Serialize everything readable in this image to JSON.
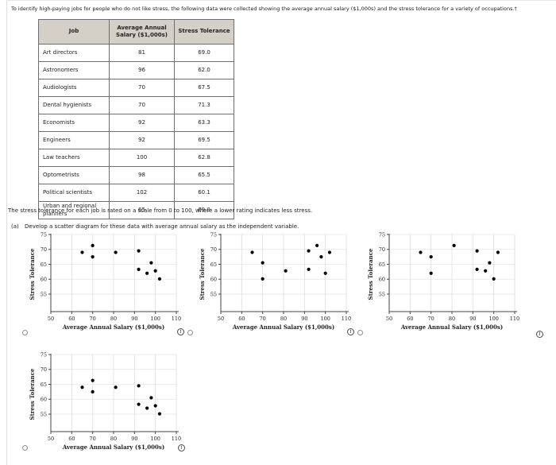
{
  "page": {
    "intro": "To identify high-paying jobs for people who do not like stress, the following data were collected showing the average annual salary ($1,000s) and the stress tolerance for a variety of occupations.†",
    "note": "The stress tolerance for each job is rated on a scale from 0 to 100, where a lower rating indicates less stress.",
    "part_label": "(a)",
    "part_prompt": "Develop a scatter diagram for these data with average annual salary as the independent variable."
  },
  "table": {
    "headers": [
      "Job",
      "Average Annual Salary ($1,000s)",
      "Stress Tolerance"
    ],
    "rows": [
      {
        "job": "Art directors",
        "salary": "81",
        "tolerance": "69.0"
      },
      {
        "job": "Astronomers",
        "salary": "96",
        "tolerance": "62.0"
      },
      {
        "job": "Audiologists",
        "salary": "70",
        "tolerance": "67.5"
      },
      {
        "job": "Dental hygienists",
        "salary": "70",
        "tolerance": "71.3"
      },
      {
        "job": "Economists",
        "salary": "92",
        "tolerance": "63.3"
      },
      {
        "job": "Engineers",
        "salary": "92",
        "tolerance": "69.5"
      },
      {
        "job": "Law teachers",
        "salary": "100",
        "tolerance": "62.8"
      },
      {
        "job": "Optometrists",
        "salary": "98",
        "tolerance": "65.5"
      },
      {
        "job": "Political scientists",
        "salary": "102",
        "tolerance": "60.1"
      },
      {
        "job": "Urban and regional planners",
        "salary": "65",
        "tolerance": "69.0"
      }
    ]
  },
  "chart_data": [
    {
      "type": "scatter",
      "option": "A",
      "xlabel": "Average Annual Salary ($1,000s)",
      "ylabel": "Stress Tolerance",
      "xlim": [
        50,
        110
      ],
      "ylim": [
        55,
        75
      ],
      "xticks": [
        50,
        60,
        70,
        80,
        90,
        100,
        110
      ],
      "yticks": [
        55,
        60,
        65,
        70,
        75
      ],
      "grid": true,
      "legend": false,
      "points": [
        [
          81,
          69.0
        ],
        [
          96,
          62.0
        ],
        [
          70,
          67.5
        ],
        [
          70,
          71.3
        ],
        [
          92,
          63.3
        ],
        [
          92,
          69.5
        ],
        [
          100,
          62.8
        ],
        [
          98,
          65.5
        ],
        [
          102,
          60.1
        ],
        [
          65,
          69.0
        ]
      ]
    },
    {
      "type": "scatter",
      "option": "B",
      "xlabel": "Average Annual Salary ($1,000s)",
      "ylabel": "Stress Tolerance",
      "xlim": [
        50,
        110
      ],
      "ylim": [
        55,
        75
      ],
      "xticks": [
        50,
        60,
        70,
        80,
        90,
        100,
        110
      ],
      "yticks": [
        55,
        60,
        65,
        70,
        75
      ],
      "grid": true,
      "legend": false,
      "points": [
        [
          65,
          69.0
        ],
        [
          70,
          60.1
        ],
        [
          70,
          65.5
        ],
        [
          81,
          62.8
        ],
        [
          92,
          69.5
        ],
        [
          92,
          63.3
        ],
        [
          96,
          71.3
        ],
        [
          98,
          67.5
        ],
        [
          100,
          62.0
        ],
        [
          102,
          69.0
        ]
      ]
    },
    {
      "type": "scatter",
      "option": "C",
      "xlabel": "Average Annual Salary ($1,000s)",
      "ylabel": "Stress Tolerance",
      "xlim": [
        50,
        110
      ],
      "ylim": [
        55,
        75
      ],
      "xticks": [
        50,
        60,
        70,
        80,
        90,
        100,
        110
      ],
      "yticks": [
        55,
        60,
        65,
        70,
        75
      ],
      "grid": true,
      "legend": false,
      "points": [
        [
          65,
          69.0
        ],
        [
          70,
          62.0
        ],
        [
          70,
          67.5
        ],
        [
          81,
          71.3
        ],
        [
          92,
          63.3
        ],
        [
          92,
          69.5
        ],
        [
          96,
          62.8
        ],
        [
          98,
          65.5
        ],
        [
          100,
          60.1
        ],
        [
          102,
          69.0
        ]
      ]
    },
    {
      "type": "scatter",
      "option": "D",
      "xlabel": "Average Annual Salary ($1,000s)",
      "ylabel": "Stress Tolerance",
      "xlim": [
        50,
        110
      ],
      "ylim": [
        55,
        75
      ],
      "xticks": [
        50,
        60,
        70,
        80,
        90,
        100,
        110
      ],
      "yticks": [
        55,
        60,
        65,
        70,
        75
      ],
      "grid": true,
      "legend": false,
      "points": [
        [
          81,
          64.0
        ],
        [
          96,
          57.0
        ],
        [
          70,
          62.5
        ],
        [
          70,
          66.3
        ],
        [
          92,
          58.3
        ],
        [
          92,
          64.5
        ],
        [
          100,
          57.8
        ],
        [
          98,
          60.5
        ],
        [
          102,
          55.1
        ],
        [
          65,
          64.0
        ]
      ]
    }
  ],
  "controls": {
    "radios_selected": [
      false,
      false,
      false,
      false
    ]
  },
  "icons": {
    "info": "i"
  },
  "colors": {
    "table_header_bg": "#d4d0c7",
    "table_border": "#6e6e6e",
    "grid_line": "#dcdcdc",
    "axis": "#444444",
    "point": "#000000"
  }
}
